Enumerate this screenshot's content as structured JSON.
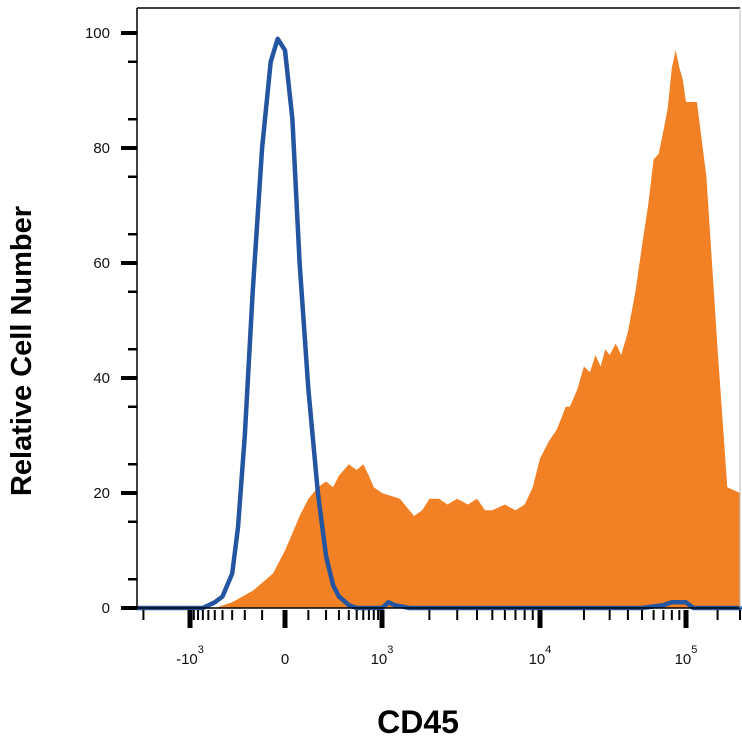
{
  "chart_data": {
    "type": "area",
    "title": "",
    "xlabel": "CD45",
    "ylabel": "Relative Cell Number",
    "x_scale": "biexponential",
    "ylim": [
      0,
      100
    ],
    "y_ticks": [
      0,
      20,
      40,
      60,
      80,
      100
    ],
    "x_ticks": [
      {
        "value": -1000,
        "base": "-10",
        "exp": "3"
      },
      {
        "value": 0,
        "base": "0",
        "exp": ""
      },
      {
        "value": 1000,
        "base": "10",
        "exp": "3"
      },
      {
        "value": 10000,
        "base": "10",
        "exp": "4"
      },
      {
        "value": 100000,
        "base": "10",
        "exp": "5"
      }
    ],
    "grid": false,
    "series": [
      {
        "style": "filled",
        "color": "#f28024",
        "x": [
          -2200,
          -500,
          -300,
          -150,
          -50,
          0,
          30,
          60,
          100,
          150,
          200,
          250,
          300,
          400,
          500,
          600,
          700,
          800,
          1000,
          1300,
          1600,
          1800,
          2000,
          2300,
          2600,
          3000,
          3500,
          4000,
          4500,
          5000,
          6000,
          7000,
          8000,
          9000,
          10000,
          11500,
          13000,
          14000,
          15000,
          16000,
          18000,
          20000,
          22000,
          24000,
          26000,
          28000,
          30000,
          33000,
          36000,
          40000,
          45000,
          50000,
          55000,
          60000,
          65000,
          70000,
          75000,
          80000,
          85000,
          90000,
          95000,
          100000,
          115000,
          130000,
          150000,
          170000,
          200000
        ],
        "values": [
          0,
          0,
          1,
          3,
          6,
          10,
          13,
          16,
          19,
          21,
          22,
          21,
          23,
          25,
          24,
          25,
          23,
          21,
          20,
          19,
          16,
          17,
          19,
          19,
          18,
          19,
          18,
          19,
          17,
          17,
          18,
          17,
          18,
          21,
          26,
          29,
          31,
          33,
          35,
          35,
          38,
          42,
          41,
          44,
          42,
          45,
          44,
          46,
          44,
          48,
          55,
          63,
          70,
          78,
          79,
          83,
          87,
          94,
          97,
          94,
          92,
          88,
          88,
          75,
          45,
          21,
          20
        ]
      },
      {
        "style": "line",
        "color": "#2455a0",
        "x": [
          -2200,
          -1000,
          -700,
          -500,
          -400,
          -300,
          -250,
          -200,
          -150,
          -100,
          -60,
          -30,
          0,
          30,
          60,
          100,
          150,
          200,
          250,
          300,
          400,
          500,
          600,
          800,
          1000,
          1100,
          1200,
          1500,
          3000,
          10000,
          50000,
          70000,
          80000,
          100000,
          110000,
          150000,
          200000
        ],
        "values": [
          0,
          0,
          0,
          1,
          2,
          6,
          14,
          30,
          55,
          80,
          95,
          99,
          97,
          85,
          60,
          38,
          20,
          9,
          4,
          2,
          0.5,
          0,
          0,
          0,
          0,
          1,
          0.5,
          0,
          0,
          0,
          0,
          0.5,
          1,
          1,
          0,
          0,
          0
        ]
      }
    ]
  }
}
